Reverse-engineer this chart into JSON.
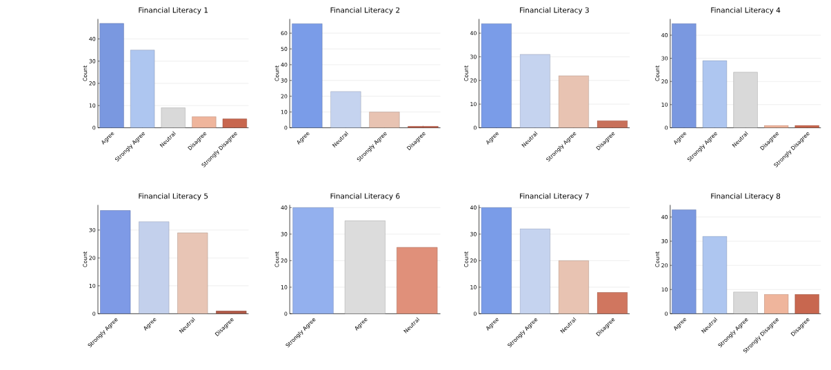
{
  "chart_data": [
    {
      "type": "bar",
      "title": "Financial Literacy 1",
      "ylabel": "Count",
      "categories": [
        "Agree",
        "Strongly Agree",
        "Neutral",
        "Disagree",
        "Strongly Disagree"
      ],
      "values": [
        47,
        35,
        9,
        5,
        4
      ],
      "colors": [
        "#7a98e0",
        "#aec6f0",
        "#d9d9d9",
        "#efb59c",
        "#c8674f"
      ],
      "ylim": [
        0,
        49
      ],
      "yticks": [
        0,
        10,
        20,
        30,
        40
      ],
      "grid": "y"
    },
    {
      "type": "bar",
      "title": "Financial Literacy 2",
      "ylabel": "Count",
      "categories": [
        "Agree",
        "Neutral",
        "Strongly Agree",
        "Disagree"
      ],
      "values": [
        66,
        23,
        10,
        1
      ],
      "colors": [
        "#7a9ce8",
        "#c5d3ef",
        "#e8c3b2",
        "#c0604c"
      ],
      "ylim": [
        0,
        69
      ],
      "yticks": [
        0,
        10,
        20,
        30,
        40,
        50,
        60
      ],
      "grid": "y"
    },
    {
      "type": "bar",
      "title": "Financial Literacy 3",
      "ylabel": "Count",
      "categories": [
        "Agree",
        "Neutral",
        "Strongly Agree",
        "Disagree"
      ],
      "values": [
        44,
        31,
        22,
        3
      ],
      "colors": [
        "#7a9ce8",
        "#c5d3ef",
        "#e8c3b2",
        "#c8705a"
      ],
      "ylim": [
        0,
        46
      ],
      "yticks": [
        0,
        10,
        20,
        30,
        40
      ],
      "grid": "y"
    },
    {
      "type": "bar",
      "title": "Financial Literacy 4",
      "ylabel": "Count",
      "categories": [
        "Agree",
        "Strongly Agree",
        "Neutral",
        "Disagree",
        "Strongly Disagree"
      ],
      "values": [
        45,
        29,
        24,
        1,
        1
      ],
      "colors": [
        "#7a98e0",
        "#aec6f0",
        "#d9d9d9",
        "#efb59c",
        "#c8674f"
      ],
      "ylim": [
        0,
        47
      ],
      "yticks": [
        0,
        10,
        20,
        30,
        40
      ],
      "grid": "y"
    },
    {
      "type": "bar",
      "title": "Financial Literacy 5",
      "ylabel": "Count",
      "categories": [
        "Strongly Agree",
        "Agree",
        "Neutral",
        "Disagree"
      ],
      "values": [
        37,
        33,
        29,
        1
      ],
      "colors": [
        "#7e9ae6",
        "#c3d0ec",
        "#e8c5b5",
        "#b05a48"
      ],
      "ylim": [
        0,
        39
      ],
      "yticks": [
        0,
        10,
        20,
        30
      ],
      "grid": "y"
    },
    {
      "type": "bar",
      "title": "Financial Literacy 6",
      "ylabel": "Count",
      "categories": [
        "Strongly Agree",
        "Agree",
        "Neutral"
      ],
      "values": [
        40,
        35,
        25
      ],
      "colors": [
        "#93b0ee",
        "#dcdcdc",
        "#e0907a"
      ],
      "ylim": [
        0,
        41
      ],
      "yticks": [
        0,
        10,
        20,
        30,
        40
      ],
      "grid": "y"
    },
    {
      "type": "bar",
      "title": "Financial Literacy 7",
      "ylabel": "Count",
      "categories": [
        "Agree",
        "Strongly Agree",
        "Neutral",
        "Disagree"
      ],
      "values": [
        40,
        32,
        20,
        8
      ],
      "colors": [
        "#7a9ce8",
        "#c5d3ef",
        "#e8c3b2",
        "#d0765f"
      ],
      "ylim": [
        0,
        41
      ],
      "yticks": [
        0,
        10,
        20,
        30,
        40
      ],
      "grid": "y"
    },
    {
      "type": "bar",
      "title": "Financial Literacy 8",
      "ylabel": "Count",
      "categories": [
        "Agree",
        "Neutral",
        "Strongly Agree",
        "Strongly Disagree",
        "Disagree"
      ],
      "values": [
        43,
        32,
        9,
        8,
        8
      ],
      "colors": [
        "#7a98e0",
        "#aec6f0",
        "#d9d9d9",
        "#efb59c",
        "#c8674f"
      ],
      "ylim": [
        0,
        45
      ],
      "yticks": [
        0,
        10,
        20,
        30,
        40
      ],
      "grid": "y"
    }
  ]
}
